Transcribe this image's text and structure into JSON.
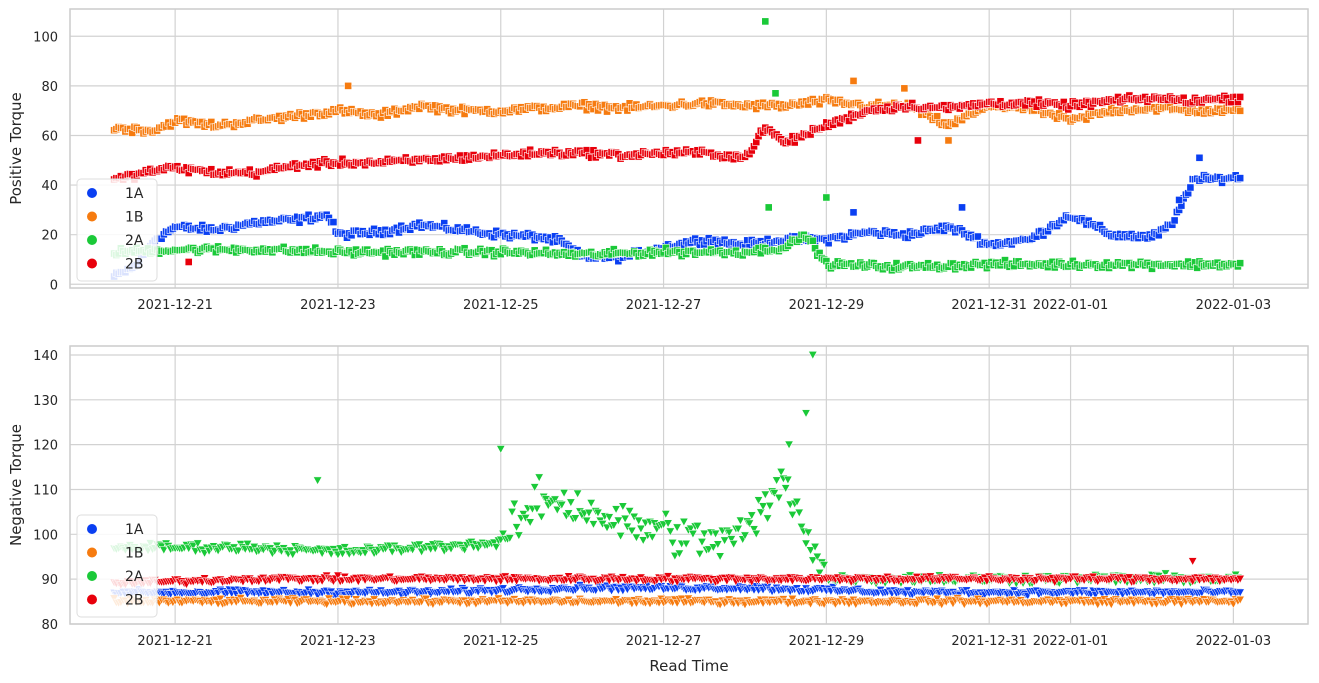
{
  "colors": {
    "1A": "#0a3ff2",
    "1B": "#f67b0f",
    "2A": "#1ac938",
    "2B": "#e8000b",
    "grid": "#d2d2d2",
    "frame": "#cccccc"
  },
  "chart_data": [
    {
      "type": "scatter",
      "marker": "square",
      "xlabel": "",
      "ylabel": "Positive Torque",
      "xlim": [
        "2021-12-19 17:00",
        "2022-01-03 22:00"
      ],
      "ylim": [
        -1.5,
        111
      ],
      "x_ticks": [
        "2021-12-21",
        "2021-12-23",
        "2021-12-25",
        "2021-12-27",
        "2021-12-29",
        "2021-12-31",
        "2022-01-01",
        "2022-01-03"
      ],
      "y_ticks": [
        0,
        20,
        40,
        60,
        80,
        100
      ],
      "grid": true,
      "legend_position": "lower-left",
      "legend": [
        "1A",
        "1B",
        "2A",
        "2B"
      ],
      "series": [
        {
          "name": "1A",
          "points": [
            [
              "2021-12-20 06:00",
              3
            ],
            [
              "2021-12-20 12:00",
              7
            ],
            [
              "2021-12-20 18:00",
              18
            ],
            [
              "2021-12-21 00:00",
              23
            ],
            [
              "2021-12-21 12:00",
              22
            ],
            [
              "2021-12-22 00:00",
              25
            ],
            [
              "2021-12-22 12:00",
              26
            ],
            [
              "2021-12-22 21:00",
              28
            ],
            [
              "2021-12-23 00:00",
              20
            ],
            [
              "2021-12-23 12:00",
              21
            ],
            [
              "2021-12-24 00:00",
              24
            ],
            [
              "2021-12-24 12:00",
              22
            ],
            [
              "2021-12-25 00:00",
              20
            ],
            [
              "2021-12-25 12:00",
              19
            ],
            [
              "2021-12-25 18:00",
              17
            ],
            [
              "2021-12-26 00:00",
              11
            ],
            [
              "2021-12-26 12:00",
              11
            ],
            [
              "2021-12-27 00:00",
              15
            ],
            [
              "2021-12-27 12:00",
              18
            ],
            [
              "2021-12-28 00:00",
              16
            ],
            [
              "2021-12-28 12:00",
              18
            ],
            [
              "2021-12-29 00:00",
              18
            ],
            [
              "2021-12-29 12:00",
              21
            ],
            [
              "2021-12-30 00:00",
              20
            ],
            [
              "2021-12-30 12:00",
              23
            ],
            [
              "2021-12-30 18:00",
              20
            ],
            [
              "2021-12-31 00:00",
              16
            ],
            [
              "2021-12-31 12:00",
              18
            ],
            [
              "2022-01-01 00:00",
              28
            ],
            [
              "2022-01-01 12:00",
              20
            ],
            [
              "2022-01-02 00:00",
              19
            ],
            [
              "2022-01-02 06:00",
              24
            ],
            [
              "2022-01-02 12:00",
              42
            ],
            [
              "2022-01-03 00:00",
              43
            ]
          ]
        },
        {
          "name": "1B",
          "points": [
            [
              "2021-12-20 06:00",
              63
            ],
            [
              "2021-12-20 18:00",
              62
            ],
            [
              "2021-12-21 00:00",
              66
            ],
            [
              "2021-12-21 12:00",
              64
            ],
            [
              "2021-12-22 00:00",
              66
            ],
            [
              "2021-12-22 12:00",
              68
            ],
            [
              "2021-12-23 00:00",
              70
            ],
            [
              "2021-12-23 12:00",
              68
            ],
            [
              "2021-12-24 00:00",
              72
            ],
            [
              "2021-12-24 12:00",
              70
            ],
            [
              "2021-12-25 00:00",
              70
            ],
            [
              "2021-12-25 12:00",
              71
            ],
            [
              "2021-12-26 00:00",
              72
            ],
            [
              "2021-12-26 12:00",
              71
            ],
            [
              "2021-12-27 00:00",
              72
            ],
            [
              "2021-12-27 12:00",
              73
            ],
            [
              "2021-12-28 00:00",
              72
            ],
            [
              "2021-12-28 12:00",
              72
            ],
            [
              "2021-12-29 00:00",
              74
            ],
            [
              "2021-12-29 12:00",
              72
            ],
            [
              "2021-12-30 00:00",
              72
            ],
            [
              "2021-12-30 12:00",
              64
            ],
            [
              "2021-12-31 00:00",
              72
            ],
            [
              "2021-12-31 12:00",
              71
            ],
            [
              "2022-01-01 00:00",
              66
            ],
            [
              "2022-01-01 12:00",
              70
            ],
            [
              "2022-01-02 00:00",
              71
            ],
            [
              "2022-01-02 12:00",
              70
            ],
            [
              "2022-01-03 00:00",
              70
            ]
          ]
        },
        {
          "name": "2A",
          "points": [
            [
              "2021-12-20 06:00",
              13
            ],
            [
              "2021-12-21 00:00",
              14
            ],
            [
              "2021-12-22 00:00",
              14
            ],
            [
              "2021-12-23 00:00",
              13
            ],
            [
              "2021-12-24 00:00",
              13
            ],
            [
              "2021-12-25 00:00",
              13
            ],
            [
              "2021-12-26 00:00",
              12
            ],
            [
              "2021-12-27 00:00",
              13
            ],
            [
              "2021-12-28 00:00",
              13
            ],
            [
              "2021-12-28 12:00",
              15
            ],
            [
              "2021-12-28 18:00",
              20
            ],
            [
              "2021-12-29 00:00",
              8
            ],
            [
              "2021-12-30 00:00",
              7
            ],
            [
              "2021-12-31 00:00",
              8
            ],
            [
              "2022-01-01 00:00",
              8
            ],
            [
              "2022-01-02 00:00",
              8
            ],
            [
              "2022-01-03 00:00",
              8
            ]
          ]
        },
        {
          "name": "2B",
          "points": [
            [
              "2021-12-20 06:00",
              42
            ],
            [
              "2021-12-20 18:00",
              46
            ],
            [
              "2021-12-21 00:00",
              47
            ],
            [
              "2021-12-21 12:00",
              45
            ],
            [
              "2021-12-22 00:00",
              45
            ],
            [
              "2021-12-22 12:00",
              48
            ],
            [
              "2021-12-23 00:00",
              49
            ],
            [
              "2021-12-23 12:00",
              49
            ],
            [
              "2021-12-24 00:00",
              50
            ],
            [
              "2021-12-24 12:00",
              51
            ],
            [
              "2021-12-25 00:00",
              52
            ],
            [
              "2021-12-25 12:00",
              53
            ],
            [
              "2021-12-26 00:00",
              53
            ],
            [
              "2021-12-26 12:00",
              52
            ],
            [
              "2021-12-27 00:00",
              53
            ],
            [
              "2021-12-27 12:00",
              53
            ],
            [
              "2021-12-28 00:00",
              51
            ],
            [
              "2021-12-28 06:00",
              63
            ],
            [
              "2021-12-28 12:00",
              57
            ],
            [
              "2021-12-29 00:00",
              64
            ],
            [
              "2021-12-29 12:00",
              70
            ],
            [
              "2021-12-30 00:00",
              72
            ],
            [
              "2021-12-30 12:00",
              71
            ],
            [
              "2021-12-31 00:00",
              73
            ],
            [
              "2021-12-31 12:00",
              73
            ],
            [
              "2022-01-01 00:00",
              72
            ],
            [
              "2022-01-01 12:00",
              74
            ],
            [
              "2022-01-02 00:00",
              75
            ],
            [
              "2022-01-02 12:00",
              74
            ],
            [
              "2022-01-03 00:00",
              75
            ]
          ]
        }
      ],
      "outliers": [
        {
          "series": "1A",
          "x": "2021-12-29 08:00",
          "y": 29
        },
        {
          "series": "1A",
          "x": "2021-12-30 16:00",
          "y": 31
        },
        {
          "series": "1A",
          "x": "2022-01-02 08:00",
          "y": 34
        },
        {
          "series": "1A",
          "x": "2022-01-02 14:00",
          "y": 51
        },
        {
          "series": "1B",
          "x": "2021-12-23 03:00",
          "y": 80
        },
        {
          "series": "1B",
          "x": "2021-12-29 08:00",
          "y": 82
        },
        {
          "series": "1B",
          "x": "2021-12-29 23:00",
          "y": 79
        },
        {
          "series": "1B",
          "x": "2021-12-30 12:00",
          "y": 58
        },
        {
          "series": "2A",
          "x": "2021-12-28 06:00",
          "y": 106
        },
        {
          "series": "2A",
          "x": "2021-12-28 09:00",
          "y": 77
        },
        {
          "series": "2A",
          "x": "2021-12-28 07:00",
          "y": 31
        },
        {
          "series": "2A",
          "x": "2021-12-29 00:00",
          "y": 35
        },
        {
          "series": "2B",
          "x": "2021-12-21 04:00",
          "y": 9
        },
        {
          "series": "2B",
          "x": "2021-12-30 03:00",
          "y": 58
        }
      ]
    },
    {
      "type": "scatter",
      "marker": "triangle-down",
      "xlabel": "Read Time",
      "ylabel": "Negative Torque",
      "xlim": [
        "2021-12-19 17:00",
        "2022-01-03 22:00"
      ],
      "ylim": [
        80,
        142
      ],
      "x_ticks": [
        "2021-12-21",
        "2021-12-23",
        "2021-12-25",
        "2021-12-27",
        "2021-12-29",
        "2021-12-31",
        "2022-01-01",
        "2022-01-03"
      ],
      "y_ticks": [
        80,
        90,
        100,
        110,
        120,
        130,
        140
      ],
      "grid": true,
      "legend_position": "lower-left",
      "legend": [
        "1A",
        "1B",
        "2A",
        "2B"
      ],
      "series": [
        {
          "name": "1A",
          "points": [
            [
              "2021-12-20 06:00",
              87
            ],
            [
              "2021-12-22 00:00",
              87
            ],
            [
              "2021-12-24 00:00",
              87
            ],
            [
              "2021-12-26 00:00",
              88
            ],
            [
              "2021-12-28 00:00",
              88
            ],
            [
              "2021-12-30 00:00",
              87
            ],
            [
              "2022-01-01 00:00",
              87
            ],
            [
              "2022-01-03 00:00",
              87
            ]
          ]
        },
        {
          "name": "1B",
          "points": [
            [
              "2021-12-20 06:00",
              85
            ],
            [
              "2021-12-22 00:00",
              85
            ],
            [
              "2021-12-24 00:00",
              85
            ],
            [
              "2021-12-26 00:00",
              85
            ],
            [
              "2021-12-28 00:00",
              85
            ],
            [
              "2021-12-30 00:00",
              85
            ],
            [
              "2022-01-01 00:00",
              85
            ],
            [
              "2022-01-03 00:00",
              85
            ]
          ]
        },
        {
          "name": "2A",
          "points": [
            [
              "2021-12-20 06:00",
              97
            ],
            [
              "2021-12-21 00:00",
              97
            ],
            [
              "2021-12-22 00:00",
              97
            ],
            [
              "2021-12-23 00:00",
              96
            ],
            [
              "2021-12-24 00:00",
              97
            ],
            [
              "2021-12-25 00:00",
              98
            ],
            [
              "2021-12-25 12:00",
              108
            ],
            [
              "2021-12-26 00:00",
              106
            ],
            [
              "2021-12-26 12:00",
              102
            ],
            [
              "2021-12-27 00:00",
              101
            ],
            [
              "2021-12-27 12:00",
              98
            ],
            [
              "2021-12-28 00:00",
              100
            ],
            [
              "2021-12-28 12:00",
              112
            ],
            [
              "2021-12-29 00:00",
              90
            ],
            [
              "2021-12-30 00:00",
              90
            ],
            [
              "2021-12-31 00:00",
              90
            ],
            [
              "2022-01-01 00:00",
              90
            ],
            [
              "2022-01-02 00:00",
              90
            ],
            [
              "2022-01-03 00:00",
              90
            ]
          ]
        },
        {
          "name": "2B",
          "points": [
            [
              "2021-12-20 06:00",
              89
            ],
            [
              "2021-12-22 00:00",
              90
            ],
            [
              "2021-12-24 00:00",
              90
            ],
            [
              "2021-12-26 00:00",
              90
            ],
            [
              "2021-12-28 00:00",
              90
            ],
            [
              "2021-12-30 00:00",
              90
            ],
            [
              "2022-01-01 00:00",
              90
            ],
            [
              "2022-01-03 00:00",
              90
            ]
          ]
        }
      ],
      "outliers": [
        {
          "series": "2A",
          "x": "2021-12-22 18:00",
          "y": 112
        },
        {
          "series": "2A",
          "x": "2021-12-25 00:00",
          "y": 119
        },
        {
          "series": "2A",
          "x": "2021-12-28 18:00",
          "y": 127
        },
        {
          "series": "2A",
          "x": "2021-12-28 20:00",
          "y": 140
        },
        {
          "series": "2A",
          "x": "2021-12-28 13:00",
          "y": 120
        },
        {
          "series": "2B",
          "x": "2022-01-02 12:00",
          "y": 94
        }
      ]
    }
  ]
}
